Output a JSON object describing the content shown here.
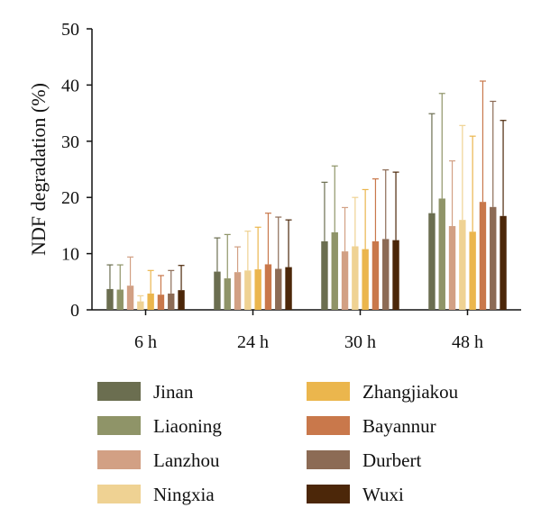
{
  "chart_data": {
    "type": "bar",
    "title": "",
    "xlabel": "",
    "ylabel": "NDF degradation (%)",
    "ylim": [
      0,
      50
    ],
    "yticks": [
      0,
      10,
      20,
      30,
      40,
      50
    ],
    "grid": false,
    "legend_position": "bottom",
    "error_bars": "upper",
    "categories": [
      "6 h",
      "24 h",
      "30 h",
      "48 h"
    ],
    "series": [
      {
        "name": "Jinan",
        "color": "#6b6e50",
        "values": [
          3.7,
          6.8,
          12.2,
          17.2
        ],
        "errors": [
          4.3,
          6.0,
          10.5,
          17.7
        ]
      },
      {
        "name": "Liaoning",
        "color": "#8f9468",
        "values": [
          3.6,
          5.6,
          13.8,
          19.8
        ],
        "errors": [
          4.4,
          7.8,
          11.8,
          18.7
        ]
      },
      {
        "name": "Lanzhou",
        "color": "#d2a084",
        "values": [
          4.3,
          6.7,
          10.4,
          14.9
        ],
        "errors": [
          5.1,
          4.5,
          7.8,
          11.6
        ]
      },
      {
        "name": "Ningxia",
        "color": "#efd293",
        "values": [
          1.5,
          7.0,
          11.3,
          16.0
        ],
        "errors": [
          1.0,
          7.0,
          8.7,
          16.8
        ]
      },
      {
        "name": "Zhangjiakou",
        "color": "#ebb64d",
        "values": [
          2.9,
          7.2,
          10.8,
          13.9
        ],
        "errors": [
          4.1,
          7.5,
          10.6,
          17.0
        ]
      },
      {
        "name": "Bayannur",
        "color": "#c9784b",
        "values": [
          2.7,
          8.1,
          12.2,
          19.2
        ],
        "errors": [
          3.4,
          9.1,
          11.1,
          21.5
        ]
      },
      {
        "name": "Durbert",
        "color": "#8c6b55",
        "values": [
          2.9,
          7.3,
          12.6,
          18.3
        ],
        "errors": [
          4.1,
          9.2,
          12.3,
          18.8
        ]
      },
      {
        "name": "Wuxi",
        "color": "#4c2709",
        "values": [
          3.5,
          7.6,
          12.4,
          16.7
        ],
        "errors": [
          4.4,
          8.4,
          12.1,
          17.0
        ]
      }
    ]
  }
}
